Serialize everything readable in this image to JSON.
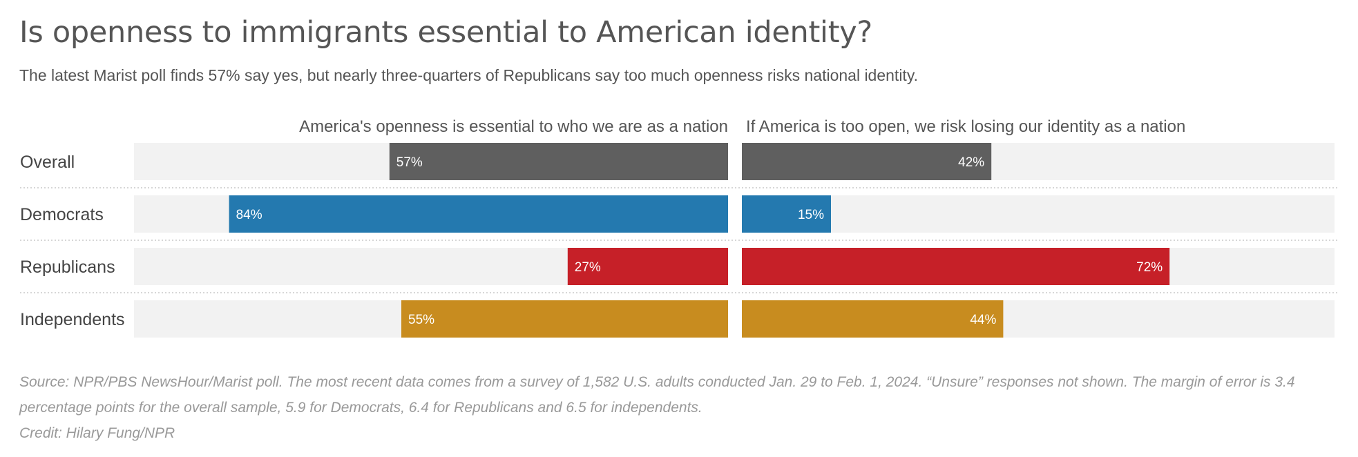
{
  "title": "Is openness to immigrants essential to American identity?",
  "subtitle": "The latest Marist poll finds 57% say yes, but nearly three-quarters of Republicans say too much openness risks national identity.",
  "chart_data": {
    "type": "bar",
    "orientation": "horizontal-diverging",
    "categories": [
      "Overall",
      "Democrats",
      "Republicans",
      "Independents"
    ],
    "series": [
      {
        "name": "America's openness is essential to who we are as a nation",
        "values": [
          57,
          84,
          27,
          55
        ],
        "labels": [
          "57%",
          "84%",
          "27%",
          "55%"
        ]
      },
      {
        "name": "If America is too open, we risk losing our identity as a nation",
        "values": [
          42,
          15,
          72,
          44
        ],
        "labels": [
          "42%",
          "15%",
          "72%",
          "44%"
        ]
      }
    ],
    "colors": [
      "#5f5f5f",
      "#2479af",
      "#c62028",
      "#c88c1f"
    ],
    "track_color": "#f2f2f2",
    "xlim": [
      0,
      100
    ],
    "unit": "%"
  },
  "footer": {
    "source": "Source: NPR/PBS NewsHour/Marist poll. The most recent data comes from a survey of 1,582 U.S. adults conducted Jan. 29 to Feb. 1, 2024. “Unsure” responses not shown. The margin of error is 3.4 percentage points for the overall sample, 5.9 for Democrats, 6.4 for Republicans and 6.5 for independents.",
    "credit": "Credit: Hilary Fung/NPR"
  }
}
